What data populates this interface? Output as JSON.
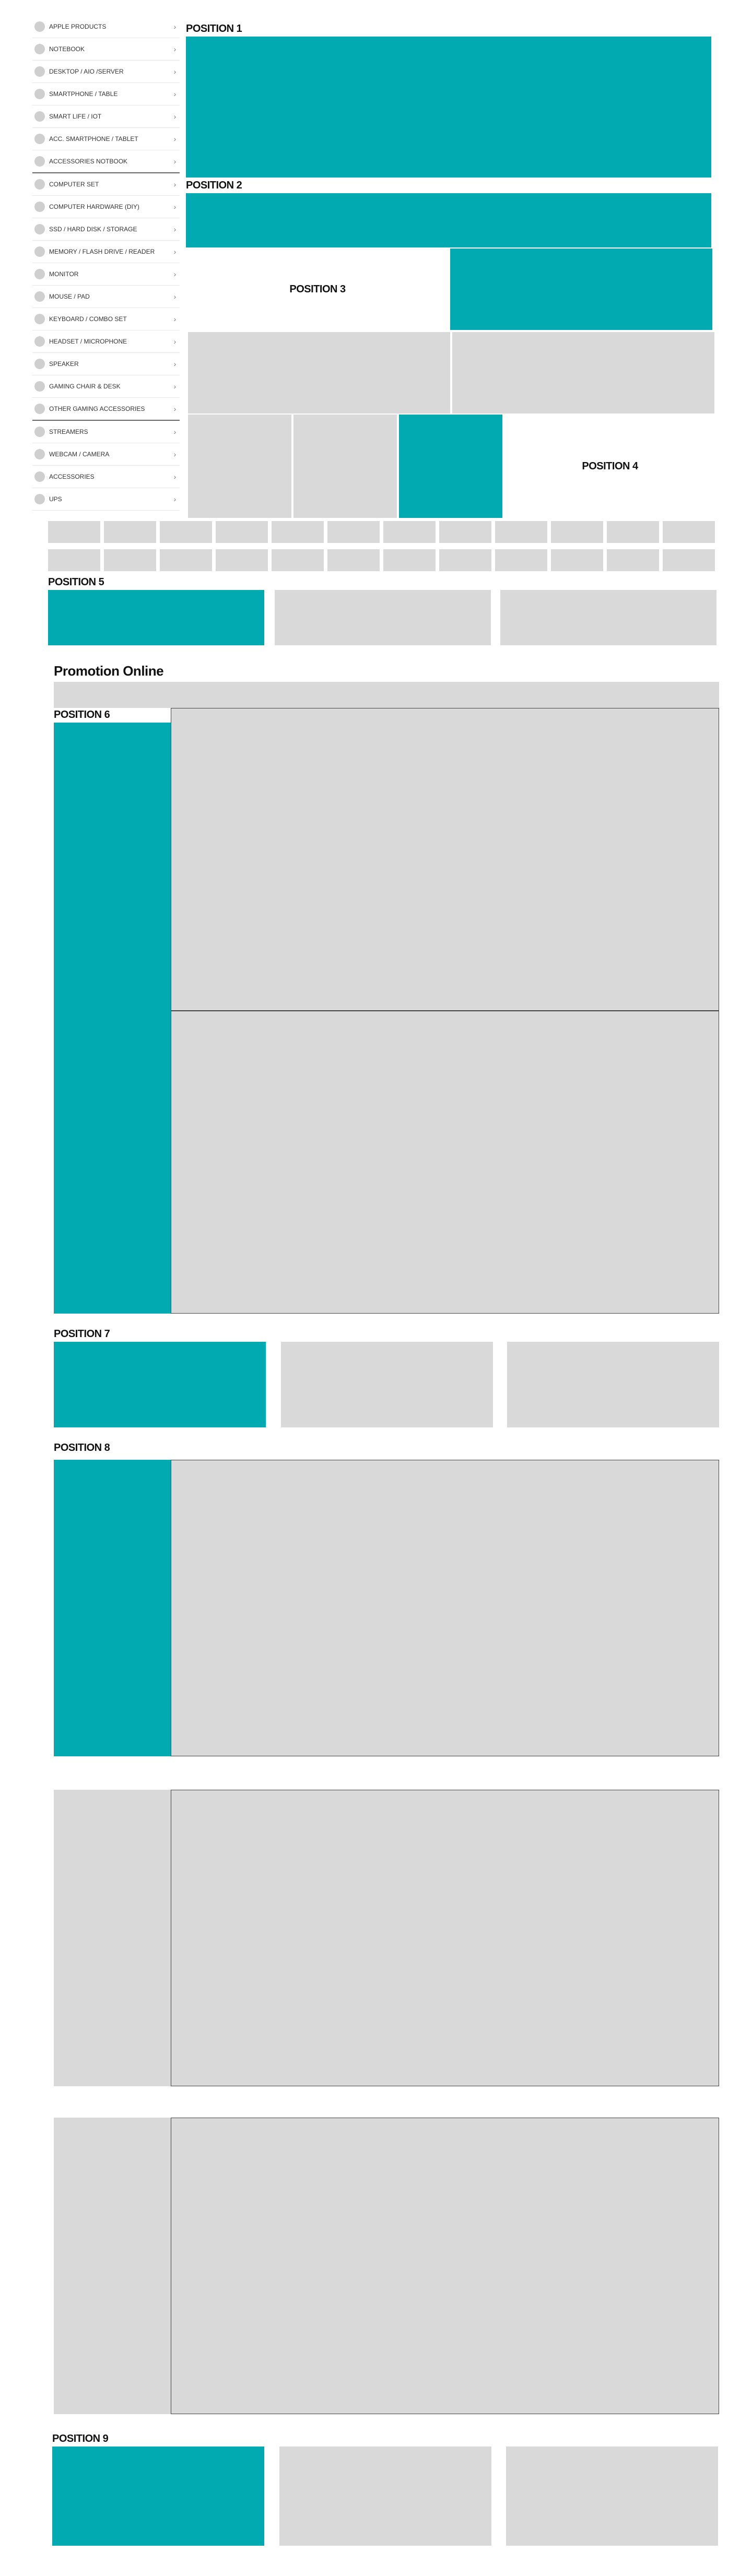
{
  "sidebar": {
    "items": [
      {
        "label": "APPLE PRODUCTS",
        "icon": "category-icon"
      },
      {
        "label": "NOTEBOOK",
        "icon": "category-icon"
      },
      {
        "label": "DESKTOP / AIO /SERVER",
        "icon": "category-icon"
      },
      {
        "label": "SMARTPHONE / TABLE",
        "icon": "category-icon"
      },
      {
        "label": "SMART LIFE / IOT",
        "icon": "category-icon"
      },
      {
        "label": "ACC. SMARTPHONE / TABLET",
        "icon": "category-icon"
      },
      {
        "label": "ACCESSORIES NOTBOOK",
        "icon": "category-icon"
      },
      {
        "label": "COMPUTER SET",
        "icon": "category-icon"
      },
      {
        "label": "COMPUTER HARDWARE (DIY)",
        "icon": "category-icon"
      },
      {
        "label": "SSD / HARD DISK / STORAGE",
        "icon": "category-icon"
      },
      {
        "label": "MEMORY / FLASH DRIVE / READER",
        "icon": "category-icon"
      },
      {
        "label": "MONITOR",
        "icon": "category-icon"
      },
      {
        "label": "MOUSE / PAD",
        "icon": "category-icon"
      },
      {
        "label": "KEYBOARD / COMBO SET",
        "icon": "category-icon"
      },
      {
        "label": "HEADSET / MICROPHONE",
        "icon": "category-icon"
      },
      {
        "label": "SPEAKER",
        "icon": "category-icon"
      },
      {
        "label": "GAMING CHAIR & DESK",
        "icon": "category-icon"
      },
      {
        "label": "OTHER GAMING ACCESSORIES",
        "icon": "category-icon"
      },
      {
        "label": "STREAMERS",
        "icon": "category-icon"
      },
      {
        "label": "WEBCAM / CAMERA",
        "icon": "category-icon"
      },
      {
        "label": "ACCESSORIES",
        "icon": "category-icon"
      },
      {
        "label": "UPS",
        "icon": "category-icon"
      }
    ],
    "chevron": "›"
  },
  "positions": {
    "p1": "POSITION 1",
    "p2": "POSITION 2",
    "p3": "POSITION 3",
    "p4": "POSITION 4",
    "p5": "POSITION 5",
    "p6": "POSITION 6",
    "p7": "POSITION 7",
    "p8": "POSITION 8",
    "p9": "POSITION 9"
  },
  "promotion": {
    "title": "Promotion Online"
  },
  "colors": {
    "accent": "#00aab0",
    "placeholder": "#d9d9d9"
  }
}
